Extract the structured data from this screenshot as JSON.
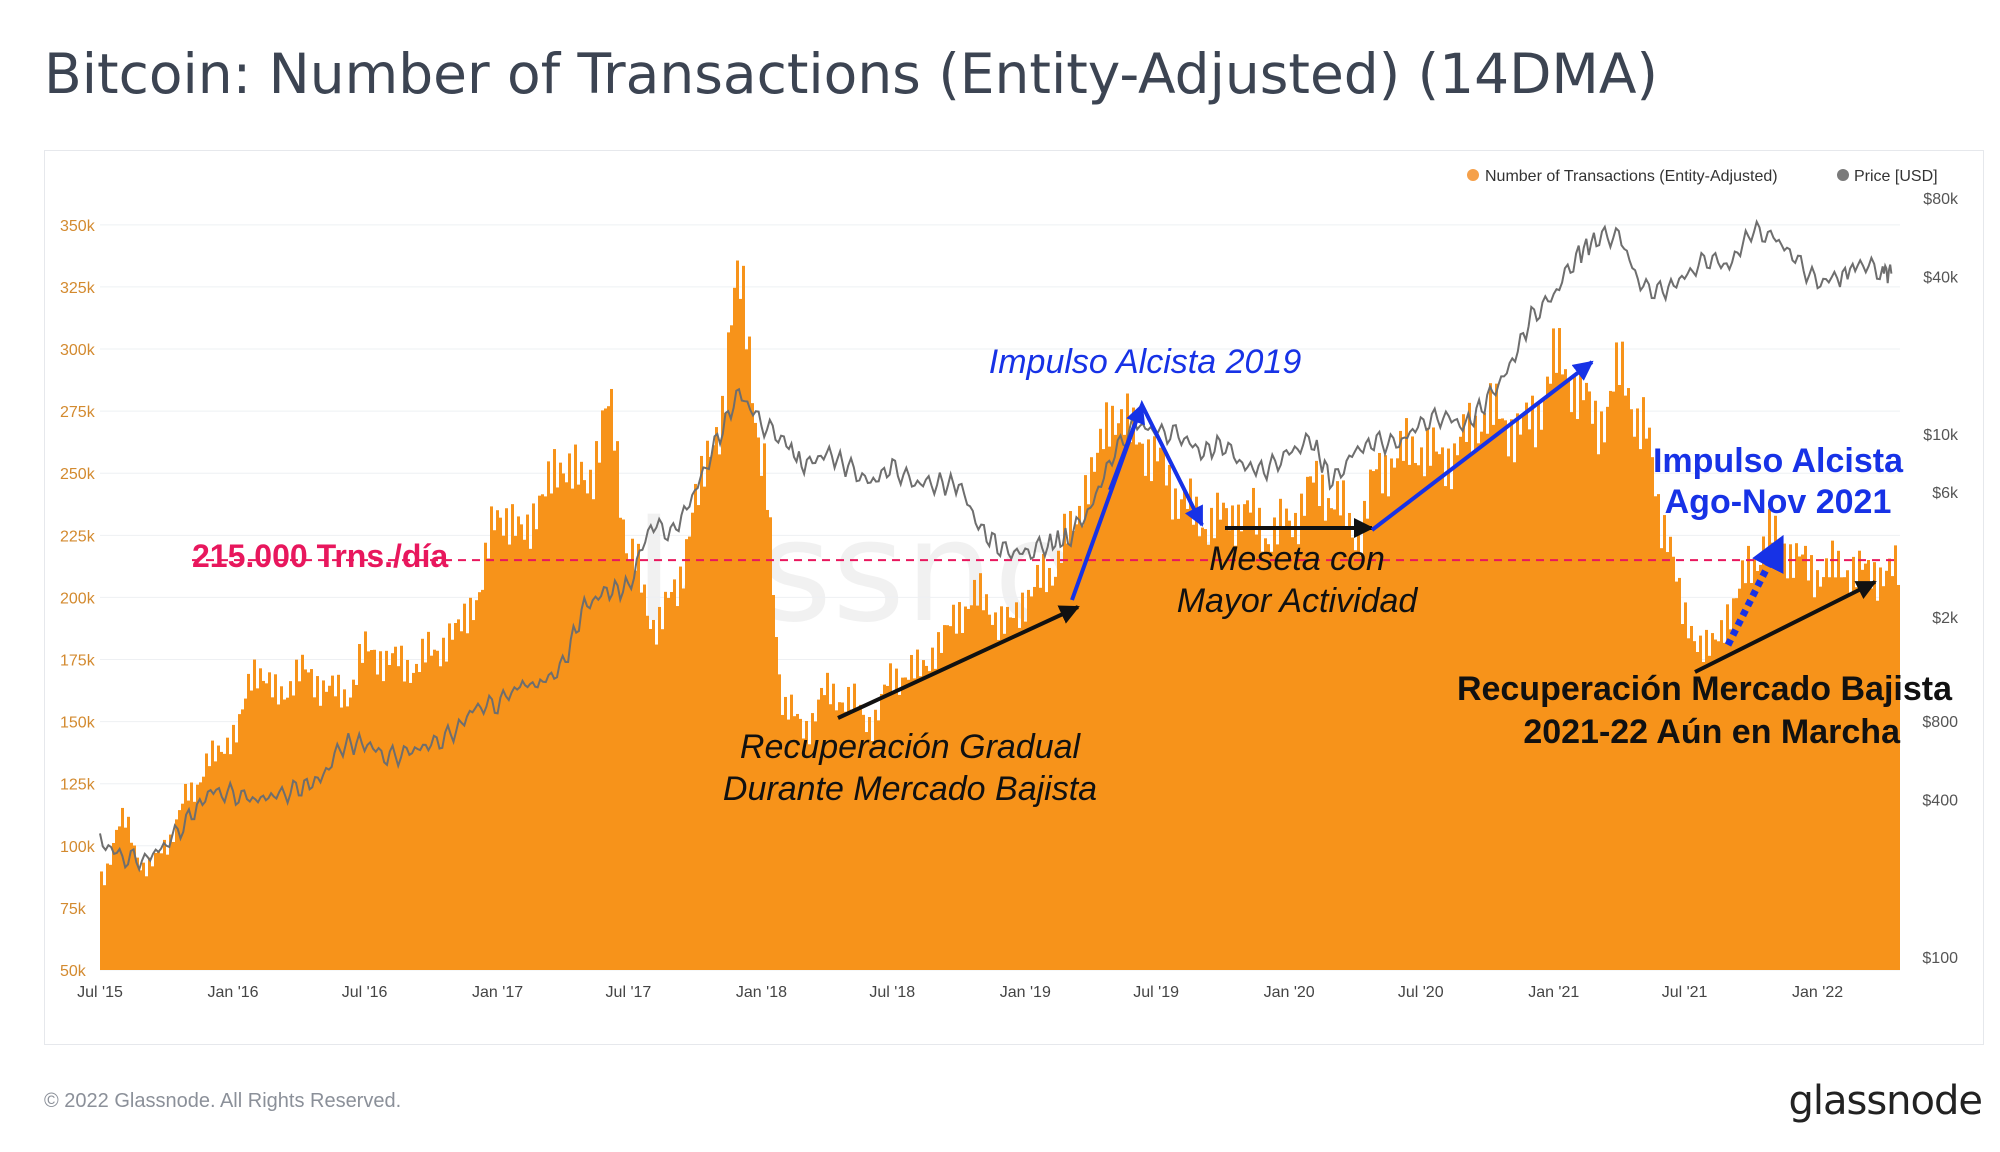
{
  "title": "Bitcoin: Number of Transactions (Entity-Adjusted) (14DMA)",
  "copyright": "© 2022 Glassnode. All Rights Reserved.",
  "brand": "glassnode",
  "watermark": "glassnode",
  "colors": {
    "transactions": "#f7931a",
    "price": "#6e6e6e",
    "threshold": "#e8175d",
    "blue_annotation": "#1732e6",
    "text": "#3c4452"
  },
  "legend": [
    {
      "name": "Number of Transactions (Entity-Adjusted)",
      "color": "#f5a04a"
    },
    {
      "name": "Price [USD]",
      "color": "#7a7a7a"
    }
  ],
  "chart_data": {
    "type": "area",
    "x_ticks": [
      "Jul '15",
      "Jan '16",
      "Jul '16",
      "Jan '17",
      "Jul '17",
      "Jan '18",
      "Jul '18",
      "Jan '19",
      "Jul '19",
      "Jan '20",
      "Jul '20",
      "Jan '21",
      "Jul '21",
      "Jan '22"
    ],
    "y_left_ticks": [
      "50k",
      "75k",
      "100k",
      "125k",
      "150k",
      "175k",
      "200k",
      "225k",
      "250k",
      "275k",
      "300k",
      "325k",
      "350k"
    ],
    "y_left_range": [
      50000,
      360000
    ],
    "y_right_ticks": [
      "$100",
      "$400",
      "$800",
      "$2k",
      "$6k",
      "$10k",
      "$40k",
      "$80k"
    ],
    "y_right_range": [
      100,
      80000
    ],
    "y_right_scale": "log",
    "series": [
      {
        "name": "Number of Transactions (Entity-Adjusted)",
        "x": [
          "2015-07-01",
          "2015-08-01",
          "2015-09-01",
          "2015-10-01",
          "2015-11-01",
          "2015-12-01",
          "2016-01-01",
          "2016-02-01",
          "2016-03-01",
          "2016-04-01",
          "2016-05-01",
          "2016-06-01",
          "2016-07-01",
          "2016-08-01",
          "2016-09-01",
          "2016-10-01",
          "2016-11-01",
          "2016-12-01",
          "2017-01-01",
          "2017-02-01",
          "2017-03-01",
          "2017-04-01",
          "2017-05-01",
          "2017-06-01",
          "2017-07-01",
          "2017-08-01",
          "2017-09-01",
          "2017-10-01",
          "2017-11-01",
          "2017-12-01",
          "2018-01-01",
          "2018-02-01",
          "2018-03-01",
          "2018-04-01",
          "2018-05-01",
          "2018-06-01",
          "2018-07-01",
          "2018-08-01",
          "2018-09-01",
          "2018-10-01",
          "2018-11-01",
          "2018-12-01",
          "2019-01-01",
          "2019-02-01",
          "2019-03-01",
          "2019-04-01",
          "2019-05-01",
          "2019-06-01",
          "2019-07-01",
          "2019-08-01",
          "2019-09-01",
          "2019-10-01",
          "2019-11-01",
          "2019-12-01",
          "2020-01-01",
          "2020-02-01",
          "2020-03-01",
          "2020-04-01",
          "2020-05-01",
          "2020-06-01",
          "2020-07-01",
          "2020-08-01",
          "2020-09-01",
          "2020-10-01",
          "2020-11-01",
          "2020-12-01",
          "2021-01-01",
          "2021-02-01",
          "2021-03-01",
          "2021-04-01",
          "2021-05-01",
          "2021-06-01",
          "2021-07-01",
          "2021-08-01",
          "2021-09-01",
          "2021-10-01",
          "2021-11-01",
          "2021-12-01",
          "2022-01-01",
          "2022-02-01",
          "2022-03-01",
          "2022-04-01"
        ],
        "values": [
          88000,
          110000,
          90000,
          102000,
          122000,
          135000,
          145000,
          172000,
          160000,
          170000,
          165000,
          160000,
          178000,
          175000,
          172000,
          178000,
          185000,
          200000,
          235000,
          225000,
          240000,
          255000,
          245000,
          275000,
          220000,
          190000,
          200000,
          240000,
          270000,
          330000,
          250000,
          155000,
          148000,
          162000,
          158000,
          150000,
          168000,
          170000,
          180000,
          195000,
          200000,
          188000,
          200000,
          210000,
          225000,
          250000,
          275000,
          265000,
          255000,
          240000,
          230000,
          232000,
          235000,
          225000,
          230000,
          245000,
          240000,
          225000,
          250000,
          258000,
          260000,
          255000,
          265000,
          275000,
          268000,
          270000,
          295000,
          285000,
          270000,
          290000,
          270000,
          230000,
          190000,
          178000,
          195000,
          215000,
          225000,
          215000,
          210000,
          212000,
          210000,
          210000
        ]
      },
      {
        "name": "Price [USD]",
        "x": [
          "2015-07-01",
          "2015-08-01",
          "2015-09-01",
          "2015-10-01",
          "2015-11-01",
          "2015-12-01",
          "2016-01-01",
          "2016-02-01",
          "2016-03-01",
          "2016-04-01",
          "2016-05-01",
          "2016-06-01",
          "2016-07-01",
          "2016-08-01",
          "2016-09-01",
          "2016-10-01",
          "2016-11-01",
          "2016-12-01",
          "2017-01-01",
          "2017-02-01",
          "2017-03-01",
          "2017-04-01",
          "2017-05-01",
          "2017-06-01",
          "2017-07-01",
          "2017-08-01",
          "2017-09-01",
          "2017-10-01",
          "2017-11-01",
          "2017-12-01",
          "2018-01-01",
          "2018-02-01",
          "2018-03-01",
          "2018-04-01",
          "2018-05-01",
          "2018-06-01",
          "2018-07-01",
          "2018-08-01",
          "2018-09-01",
          "2018-10-01",
          "2018-11-01",
          "2018-12-01",
          "2019-01-01",
          "2019-02-01",
          "2019-03-01",
          "2019-04-01",
          "2019-05-01",
          "2019-06-01",
          "2019-07-01",
          "2019-08-01",
          "2019-09-01",
          "2019-10-01",
          "2019-11-01",
          "2019-12-01",
          "2020-01-01",
          "2020-02-01",
          "2020-03-01",
          "2020-04-01",
          "2020-05-01",
          "2020-06-01",
          "2020-07-01",
          "2020-08-01",
          "2020-09-01",
          "2020-10-01",
          "2020-11-01",
          "2020-12-01",
          "2021-01-01",
          "2021-02-01",
          "2021-03-01",
          "2021-04-01",
          "2021-05-01",
          "2021-06-01",
          "2021-07-01",
          "2021-08-01",
          "2021-09-01",
          "2021-10-01",
          "2021-11-01",
          "2021-12-01",
          "2022-01-01",
          "2022-02-01",
          "2022-03-01",
          "2022-04-01"
        ],
        "values": [
          280,
          240,
          235,
          270,
          340,
          430,
          420,
          400,
          415,
          440,
          480,
          650,
          660,
          580,
          610,
          650,
          720,
          900,
          930,
          1100,
          1100,
          1300,
          2200,
          2500,
          2600,
          4500,
          4200,
          6000,
          9500,
          14500,
          11000,
          9500,
          7500,
          8500,
          7500,
          6500,
          7500,
          6500,
          6500,
          6400,
          4300,
          3600,
          3500,
          3800,
          4000,
          5200,
          8200,
          11000,
          10200,
          10000,
          8500,
          9200,
          7500,
          7300,
          8500,
          9500,
          6500,
          8600,
          9400,
          9200,
          11000,
          11700,
          10800,
          13500,
          18000,
          28000,
          34000,
          48000,
          56000,
          58000,
          37000,
          35000,
          40000,
          47000,
          44000,
          60000,
          57000,
          47000,
          38000,
          40000,
          45000,
          42000
        ]
      }
    ],
    "threshold": {
      "value": 215000,
      "label": "215.000 Trns./día"
    },
    "annotations": [
      {
        "text": "Impulso Alcista 2019",
        "color": "blue"
      },
      {
        "text": "Meseta con",
        "color": "black"
      },
      {
        "text": "Mayor Actividad",
        "color": "black"
      },
      {
        "text": "Recuperación Gradual",
        "color": "black"
      },
      {
        "text": "Durante Mercado Bajista",
        "color": "black"
      },
      {
        "text": "Impulso Alcista",
        "color": "blue"
      },
      {
        "text": "Ago-Nov 2021",
        "color": "blue"
      },
      {
        "text": "Recuperación Mercado Bajista",
        "color": "black"
      },
      {
        "text": "2021-22 Aún en Marcha",
        "color": "black"
      }
    ]
  }
}
